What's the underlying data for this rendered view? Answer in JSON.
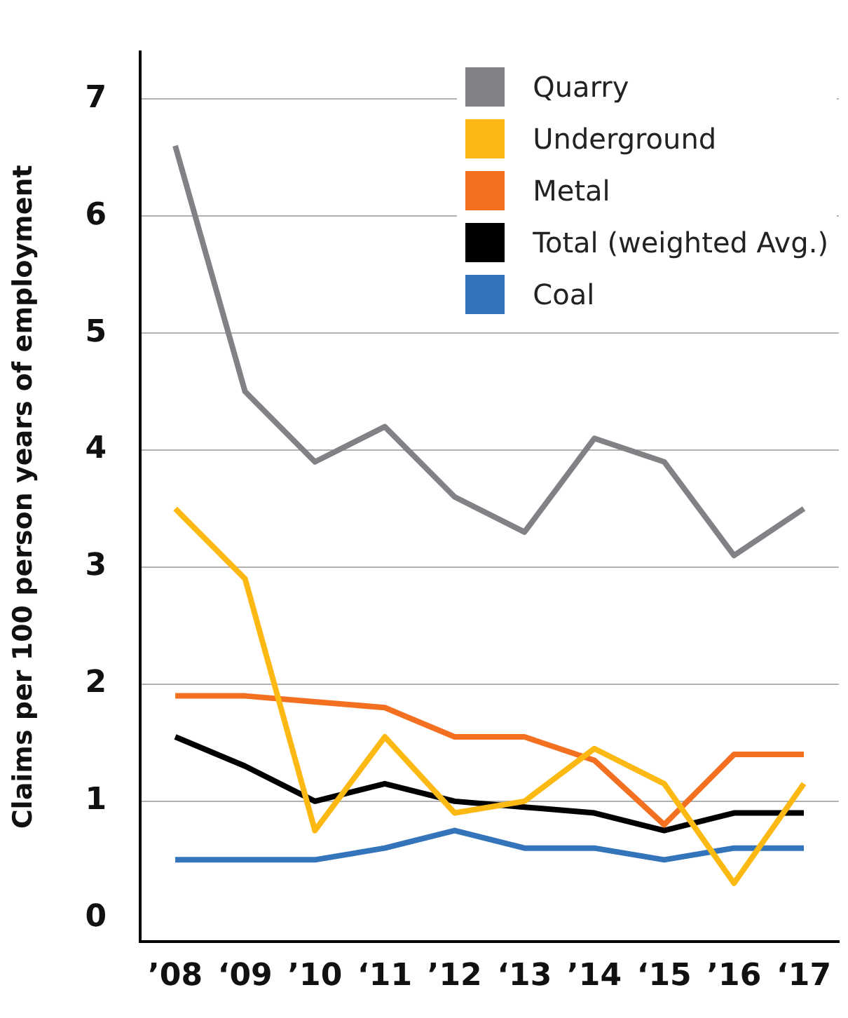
{
  "chart_data": {
    "type": "line",
    "ylabel": "Claims per 100 person years of employment",
    "categories": [
      "’08",
      "‘09",
      "’10",
      "‘11",
      "’12",
      "‘13",
      "’14",
      "‘15",
      "’16",
      "‘17"
    ],
    "series": [
      {
        "name": "Quarry",
        "color": "#808285",
        "values": [
          6.6,
          4.5,
          3.9,
          4.2,
          3.6,
          3.3,
          4.1,
          3.9,
          3.1,
          3.5
        ]
      },
      {
        "name": "Underground",
        "color": "#fdb913",
        "values": [
          3.5,
          2.9,
          0.75,
          1.55,
          0.9,
          1.0,
          1.45,
          1.15,
          0.3,
          1.15
        ]
      },
      {
        "name": "Metal",
        "color": "#f37021",
        "values": [
          1.9,
          1.9,
          1.85,
          1.8,
          1.55,
          1.55,
          1.35,
          0.8,
          1.4,
          1.4
        ]
      },
      {
        "name": "Total (weighted Avg.)",
        "color": "#000000",
        "values": [
          1.55,
          1.3,
          1.0,
          1.15,
          1.0,
          0.95,
          0.9,
          0.75,
          0.9,
          0.9
        ]
      },
      {
        "name": "Coal",
        "color": "#3474bb",
        "values": [
          0.5,
          0.5,
          0.5,
          0.6,
          0.75,
          0.6,
          0.6,
          0.5,
          0.6,
          0.6
        ]
      }
    ],
    "ylim": [
      -0.2,
      7.4
    ],
    "yticks": [
      0,
      1,
      2,
      3,
      4,
      5,
      6,
      7
    ],
    "grid": "y",
    "legend": "top right",
    "marker": "none",
    "line_style": "solid"
  }
}
